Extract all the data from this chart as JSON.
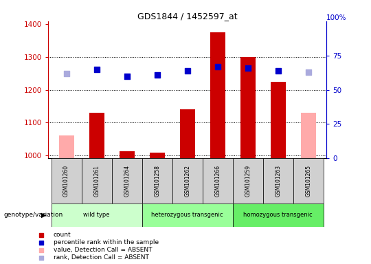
{
  "title": "GDS1844 / 1452597_at",
  "samples": [
    "GSM101260",
    "GSM101261",
    "GSM101264",
    "GSM101258",
    "GSM101262",
    "GSM101266",
    "GSM101259",
    "GSM101263",
    "GSM101265"
  ],
  "count_values": [
    1060,
    1130,
    1012,
    1008,
    1140,
    1375,
    1300,
    1225,
    1130
  ],
  "count_absent": [
    true,
    false,
    false,
    false,
    false,
    false,
    false,
    false,
    true
  ],
  "percentile_values": [
    62,
    65,
    60,
    61,
    64,
    67,
    66,
    64,
    63
  ],
  "percentile_absent": [
    true,
    false,
    false,
    false,
    false,
    false,
    false,
    false,
    true
  ],
  "groups": [
    {
      "label": "wild type",
      "start": 0,
      "end": 3,
      "color": "#ccffcc"
    },
    {
      "label": "heterozygous transgenic",
      "start": 3,
      "end": 6,
      "color": "#99ff99"
    },
    {
      "label": "homozygous transgenic",
      "start": 6,
      "end": 9,
      "color": "#66ee66"
    }
  ],
  "ylim_left": [
    990,
    1410
  ],
  "ylim_right": [
    0,
    100
  ],
  "yticks_left": [
    1000,
    1100,
    1200,
    1300,
    1400
  ],
  "yticks_right_labels": [
    0,
    25,
    50,
    75
  ],
  "yticks_right_top": "100%",
  "bar_color_present": "#cc0000",
  "bar_color_absent": "#ffaaaa",
  "dot_color_present": "#0000cc",
  "dot_color_absent": "#aaaadd",
  "bar_width": 0.5,
  "dot_size": 35,
  "left_axis_color": "#cc0000",
  "right_axis_color": "#0000cc",
  "background_color": "#ffffff",
  "plot_bg_color": "#ffffff",
  "legend_items": [
    {
      "color": "#cc0000",
      "label": "count"
    },
    {
      "color": "#0000cc",
      "label": "percentile rank within the sample"
    },
    {
      "color": "#ffaaaa",
      "label": "value, Detection Call = ABSENT"
    },
    {
      "color": "#aaaadd",
      "label": "rank, Detection Call = ABSENT"
    }
  ]
}
